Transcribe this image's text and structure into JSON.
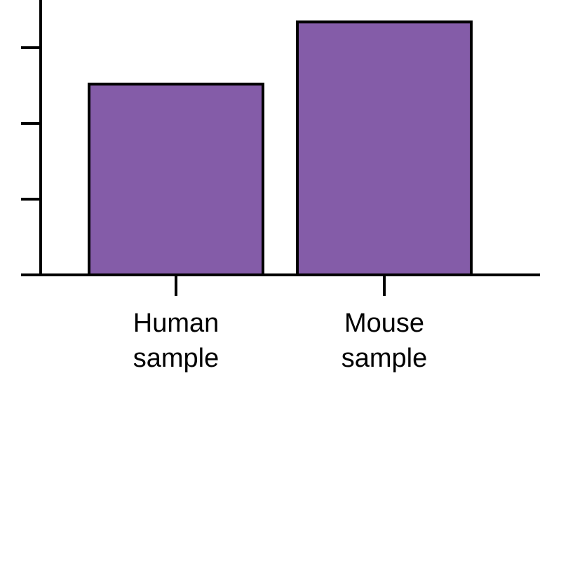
{
  "chart_data": {
    "type": "bar",
    "categories": [
      "Human sample",
      "Mouse sample"
    ],
    "values": [
      2.52,
      3.34
    ],
    "color": "#845ca8",
    "ylim": [
      0,
      3.63
    ],
    "yticks": [
      1,
      2,
      3
    ]
  }
}
